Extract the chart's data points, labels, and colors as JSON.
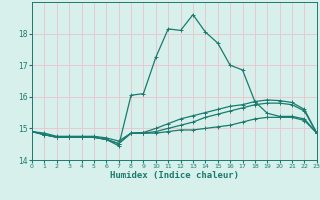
{
  "background_color": "#d8f0ec",
  "grid_color": "#e8c8d0",
  "line_color": "#1a7a6e",
  "x_min": 0,
  "x_max": 23,
  "y_min": 14,
  "y_max": 19,
  "xlabel": "Humidex (Indice chaleur)",
  "xlabel_fontsize": 6.5,
  "yticks": [
    14,
    15,
    16,
    17,
    18
  ],
  "xticks": [
    0,
    1,
    2,
    3,
    4,
    5,
    6,
    7,
    8,
    9,
    10,
    11,
    12,
    13,
    14,
    15,
    16,
    17,
    18,
    19,
    20,
    21,
    22,
    23
  ],
  "curve1_x": [
    0,
    1,
    2,
    3,
    4,
    5,
    6,
    7,
    8,
    9,
    10,
    11,
    12,
    13,
    14,
    15,
    16,
    17,
    18,
    19,
    20,
    21,
    22,
    23
  ],
  "curve1_y": [
    14.9,
    14.85,
    14.75,
    14.75,
    14.75,
    14.75,
    14.7,
    14.6,
    14.85,
    14.85,
    14.85,
    14.9,
    14.95,
    14.95,
    15.0,
    15.05,
    15.1,
    15.2,
    15.3,
    15.35,
    15.35,
    15.35,
    15.25,
    14.85
  ],
  "curve2_x": [
    0,
    1,
    2,
    3,
    4,
    5,
    6,
    7,
    8,
    9,
    10,
    11,
    12,
    13,
    14,
    15,
    16,
    17,
    18,
    19,
    20,
    21,
    22,
    23
  ],
  "curve2_y": [
    14.9,
    14.8,
    14.72,
    14.72,
    14.72,
    14.72,
    14.65,
    14.52,
    14.85,
    14.85,
    14.9,
    15.0,
    15.1,
    15.2,
    15.35,
    15.45,
    15.55,
    15.65,
    15.75,
    15.8,
    15.8,
    15.75,
    15.55,
    14.85
  ],
  "curve3_x": [
    0,
    1,
    2,
    3,
    4,
    5,
    6,
    7,
    8,
    9,
    10,
    11,
    12,
    13,
    14,
    15,
    16,
    17,
    18,
    19,
    20,
    21,
    22,
    23
  ],
  "curve3_y": [
    14.9,
    14.8,
    14.72,
    14.72,
    14.72,
    14.72,
    14.65,
    14.52,
    14.85,
    14.87,
    15.0,
    15.15,
    15.3,
    15.4,
    15.5,
    15.6,
    15.7,
    15.75,
    15.85,
    15.9,
    15.88,
    15.82,
    15.6,
    14.85
  ],
  "curve4_x": [
    0,
    1,
    2,
    3,
    4,
    5,
    6,
    7,
    8,
    9,
    10,
    11,
    12,
    13,
    14,
    15,
    16,
    17,
    18,
    19,
    20,
    21,
    22,
    23
  ],
  "curve4_y": [
    14.9,
    14.8,
    14.72,
    14.72,
    14.72,
    14.72,
    14.65,
    14.45,
    16.05,
    16.1,
    17.25,
    18.15,
    18.1,
    18.6,
    18.05,
    17.7,
    17.0,
    16.85,
    15.85,
    15.48,
    15.38,
    15.38,
    15.3,
    14.85
  ],
  "marker": "+",
  "markersize": 3,
  "linewidth": 0.9
}
